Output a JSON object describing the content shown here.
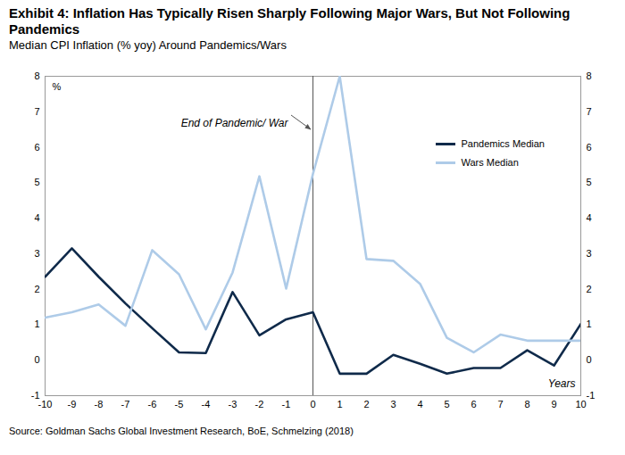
{
  "chart_data": {
    "type": "line",
    "title": "Exhibit 4: Inflation Has Typically Risen Sharply Following Major Wars, But Not Following Pandemics",
    "subtitle": "Median CPI Inflation (% yoy) Around Pandemics/Wars",
    "source": "Source: Goldman Sachs Global Investment Research, BoE, Schmelzing (2018)",
    "x": [
      -10,
      -9,
      -8,
      -7,
      -6,
      -5,
      -4,
      -3,
      -2,
      -1,
      0,
      1,
      2,
      3,
      4,
      5,
      6,
      7,
      8,
      9,
      10
    ],
    "series": [
      {
        "name": "Pandemics Median",
        "color": "#0f2a4a",
        "values": [
          2.35,
          3.15,
          2.35,
          1.6,
          0.9,
          0.22,
          0.2,
          1.92,
          0.7,
          1.15,
          1.35,
          -0.38,
          -0.38,
          0.15,
          -0.1,
          -0.38,
          -0.22,
          -0.22,
          0.28,
          -0.15,
          1.02
        ]
      },
      {
        "name": "Wars Median",
        "color": "#aecbe8",
        "values": [
          1.2,
          1.35,
          1.57,
          0.97,
          3.1,
          2.42,
          0.87,
          2.47,
          5.18,
          2.02,
          5.25,
          8.0,
          2.85,
          2.8,
          2.15,
          0.63,
          0.22,
          0.72,
          0.55,
          0.55,
          0.55
        ]
      }
    ],
    "xlim": [
      -10,
      10
    ],
    "xticks": [
      -10,
      -9,
      -8,
      -7,
      -6,
      -5,
      -4,
      -3,
      -2,
      -1,
      0,
      1,
      2,
      3,
      4,
      5,
      6,
      7,
      8,
      9,
      10
    ],
    "xlabel": "Years",
    "ylabel": "%",
    "ylim": [
      -1,
      8
    ],
    "yticks": [
      -1,
      0,
      1,
      2,
      3,
      4,
      5,
      6,
      7,
      8
    ],
    "y2lim": [
      -1,
      8
    ],
    "y2ticks": [
      -1,
      0,
      1,
      2,
      3,
      4,
      5,
      6,
      7,
      8
    ],
    "annotations": [
      {
        "text": "End of Pandemic/ War",
        "x": 0
      }
    ],
    "legend": "upper right",
    "grid": false
  }
}
